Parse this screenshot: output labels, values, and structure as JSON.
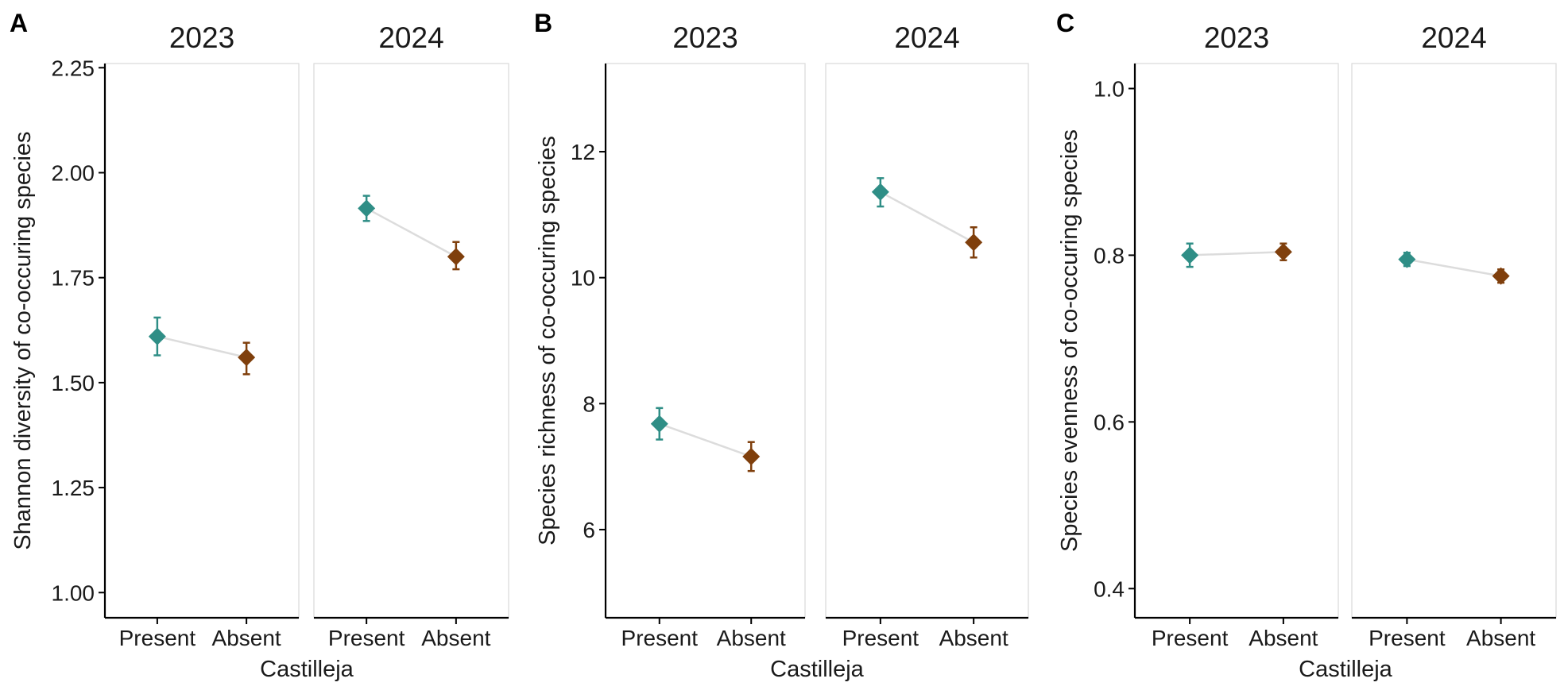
{
  "colors": {
    "present": "#2f8e86",
    "absent": "#7f3f0c",
    "connector": "#dcdcdc",
    "facet_border": "#d9d9d9",
    "axis": "#000000"
  },
  "chart_data": [
    {
      "panel_label": "A",
      "type": "scatter",
      "ylabel": "Shannon diversity of co-occuring species",
      "xlabel": "Castilleja",
      "categories": [
        "Present",
        "Absent"
      ],
      "ylim": [
        0.94,
        2.26
      ],
      "yticks": [
        1.0,
        1.25,
        1.5,
        1.75,
        2.0,
        2.25
      ],
      "ytick_labels": [
        "1.00",
        "1.25",
        "1.50",
        "1.75",
        "2.00",
        "2.25"
      ],
      "facets": [
        {
          "title": "2023",
          "points": [
            {
              "x": "Present",
              "y": 1.61,
              "low": 1.565,
              "high": 1.655
            },
            {
              "x": "Absent",
              "y": 1.56,
              "low": 1.52,
              "high": 1.595
            }
          ]
        },
        {
          "title": "2024",
          "points": [
            {
              "x": "Present",
              "y": 1.915,
              "low": 1.885,
              "high": 1.945
            },
            {
              "x": "Absent",
              "y": 1.8,
              "low": 1.77,
              "high": 1.835
            }
          ]
        }
      ]
    },
    {
      "panel_label": "B",
      "type": "scatter",
      "ylabel": "Species richness of co-occuring species",
      "xlabel": "Castilleja",
      "categories": [
        "Present",
        "Absent"
      ],
      "ylim": [
        4.6,
        13.4
      ],
      "yticks": [
        6,
        8,
        10,
        12
      ],
      "ytick_labels": [
        "6",
        "8",
        "10",
        "12"
      ],
      "facets": [
        {
          "title": "2023",
          "points": [
            {
              "x": "Present",
              "y": 7.68,
              "low": 7.43,
              "high": 7.93
            },
            {
              "x": "Absent",
              "y": 7.16,
              "low": 6.93,
              "high": 7.39
            }
          ]
        },
        {
          "title": "2024",
          "points": [
            {
              "x": "Present",
              "y": 11.36,
              "low": 11.13,
              "high": 11.58
            },
            {
              "x": "Absent",
              "y": 10.56,
              "low": 10.32,
              "high": 10.8
            }
          ]
        }
      ]
    },
    {
      "panel_label": "C",
      "type": "scatter",
      "ylabel": "Species evenness of co-occuring species",
      "xlabel": "Castilleja",
      "categories": [
        "Present",
        "Absent"
      ],
      "ylim": [
        0.365,
        1.03
      ],
      "yticks": [
        0.4,
        0.6,
        0.8,
        1.0
      ],
      "ytick_labels": [
        "0.4",
        "0.6",
        "0.8",
        "1.0"
      ],
      "facets": [
        {
          "title": "2023",
          "points": [
            {
              "x": "Present",
              "y": 0.8,
              "low": 0.786,
              "high": 0.814
            },
            {
              "x": "Absent",
              "y": 0.804,
              "low": 0.794,
              "high": 0.814
            }
          ]
        },
        {
          "title": "2024",
          "points": [
            {
              "x": "Present",
              "y": 0.795,
              "low": 0.787,
              "high": 0.803
            },
            {
              "x": "Absent",
              "y": 0.775,
              "low": 0.767,
              "high": 0.783
            }
          ]
        }
      ]
    }
  ]
}
